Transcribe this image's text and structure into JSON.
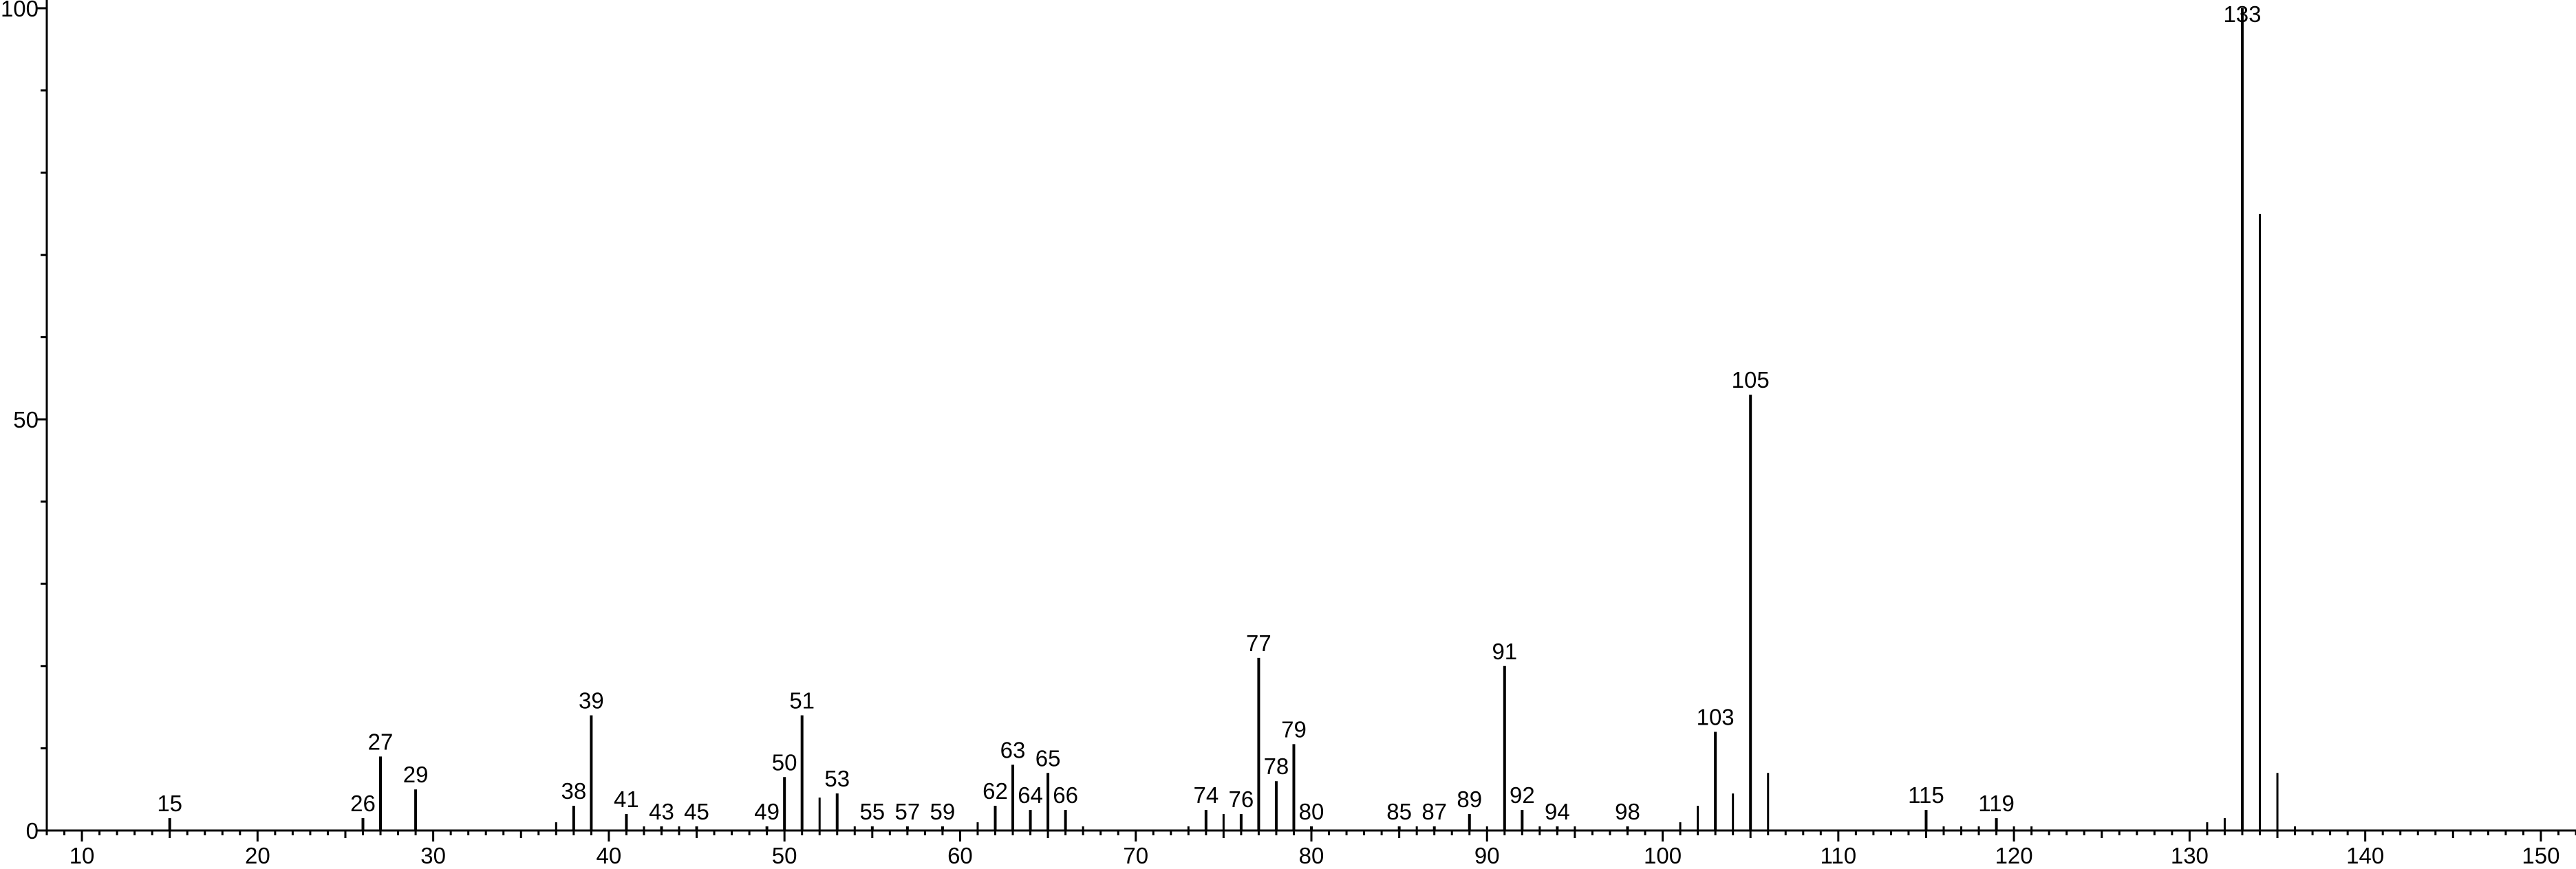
{
  "chart_data": {
    "type": "bar",
    "title": "",
    "xlabel": "",
    "ylabel": "",
    "xlim": [
      8,
      152
    ],
    "ylim": [
      0,
      101
    ],
    "x_ticks": [
      10,
      20,
      30,
      40,
      50,
      60,
      70,
      80,
      90,
      100,
      110,
      120,
      130,
      140,
      150
    ],
    "y_ticks": [
      0,
      50,
      100
    ],
    "grid": false,
    "legend": "none",
    "peaks": [
      {
        "x": 15,
        "y": 1.5,
        "label": "15"
      },
      {
        "x": 26,
        "y": 1.5,
        "label": "26"
      },
      {
        "x": 27,
        "y": 9,
        "label": "27"
      },
      {
        "x": 29,
        "y": 5,
        "label": "29"
      },
      {
        "x": 37,
        "y": 1,
        "label": ""
      },
      {
        "x": 38,
        "y": 3,
        "label": "38"
      },
      {
        "x": 39,
        "y": 14,
        "label": "39"
      },
      {
        "x": 41,
        "y": 2,
        "label": "41"
      },
      {
        "x": 42,
        "y": 0.5,
        "label": ""
      },
      {
        "x": 43,
        "y": 0.5,
        "label": "43"
      },
      {
        "x": 44,
        "y": 0.5,
        "label": ""
      },
      {
        "x": 45,
        "y": 0.5,
        "label": "45"
      },
      {
        "x": 49,
        "y": 0.5,
        "label": "49"
      },
      {
        "x": 50,
        "y": 6.5,
        "label": "50"
      },
      {
        "x": 51,
        "y": 14,
        "label": "51"
      },
      {
        "x": 52,
        "y": 4,
        "label": ""
      },
      {
        "x": 53,
        "y": 4.5,
        "label": "53"
      },
      {
        "x": 54,
        "y": 0.5,
        "label": ""
      },
      {
        "x": 55,
        "y": 0.5,
        "label": "55"
      },
      {
        "x": 57,
        "y": 0.5,
        "label": "57"
      },
      {
        "x": 59,
        "y": 0.5,
        "label": "59"
      },
      {
        "x": 61,
        "y": 1,
        "label": ""
      },
      {
        "x": 62,
        "y": 3,
        "label": "62"
      },
      {
        "x": 63,
        "y": 8,
        "label": "63"
      },
      {
        "x": 64,
        "y": 2.5,
        "label": "64"
      },
      {
        "x": 65,
        "y": 7,
        "label": "65"
      },
      {
        "x": 66,
        "y": 2.5,
        "label": "66"
      },
      {
        "x": 67,
        "y": 0.5,
        "label": ""
      },
      {
        "x": 73,
        "y": 0.5,
        "label": ""
      },
      {
        "x": 74,
        "y": 2.5,
        "label": "74"
      },
      {
        "x": 75,
        "y": 2,
        "label": ""
      },
      {
        "x": 76,
        "y": 2,
        "label": "76"
      },
      {
        "x": 77,
        "y": 21,
        "label": "77"
      },
      {
        "x": 78,
        "y": 6,
        "label": "78"
      },
      {
        "x": 79,
        "y": 10.5,
        "label": "79"
      },
      {
        "x": 80,
        "y": 0.5,
        "label": "80"
      },
      {
        "x": 85,
        "y": 0.5,
        "label": "85"
      },
      {
        "x": 86,
        "y": 0.5,
        "label": ""
      },
      {
        "x": 87,
        "y": 0.5,
        "label": "87"
      },
      {
        "x": 89,
        "y": 2,
        "label": "89"
      },
      {
        "x": 90,
        "y": 0.5,
        "label": ""
      },
      {
        "x": 91,
        "y": 20,
        "label": "91"
      },
      {
        "x": 92,
        "y": 2.5,
        "label": "92"
      },
      {
        "x": 93,
        "y": 0.5,
        "label": ""
      },
      {
        "x": 94,
        "y": 0.5,
        "label": "94"
      },
      {
        "x": 95,
        "y": 0.5,
        "label": ""
      },
      {
        "x": 98,
        "y": 0.5,
        "label": "98"
      },
      {
        "x": 101,
        "y": 1,
        "label": ""
      },
      {
        "x": 102,
        "y": 3,
        "label": ""
      },
      {
        "x": 103,
        "y": 12,
        "label": "103"
      },
      {
        "x": 104,
        "y": 4.5,
        "label": ""
      },
      {
        "x": 105,
        "y": 53,
        "label": "105"
      },
      {
        "x": 106,
        "y": 7,
        "label": ""
      },
      {
        "x": 115,
        "y": 2.5,
        "label": "115"
      },
      {
        "x": 116,
        "y": 0.5,
        "label": ""
      },
      {
        "x": 117,
        "y": 0.5,
        "label": ""
      },
      {
        "x": 118,
        "y": 0.5,
        "label": ""
      },
      {
        "x": 119,
        "y": 1.5,
        "label": "119"
      },
      {
        "x": 120,
        "y": 0.5,
        "label": ""
      },
      {
        "x": 121,
        "y": 0.5,
        "label": ""
      },
      {
        "x": 131,
        "y": 1,
        "label": ""
      },
      {
        "x": 132,
        "y": 1.5,
        "label": ""
      },
      {
        "x": 133,
        "y": 100,
        "label": "133"
      },
      {
        "x": 134,
        "y": 75,
        "label": ""
      },
      {
        "x": 135,
        "y": 7,
        "label": ""
      },
      {
        "x": 136,
        "y": 0.5,
        "label": ""
      }
    ]
  }
}
